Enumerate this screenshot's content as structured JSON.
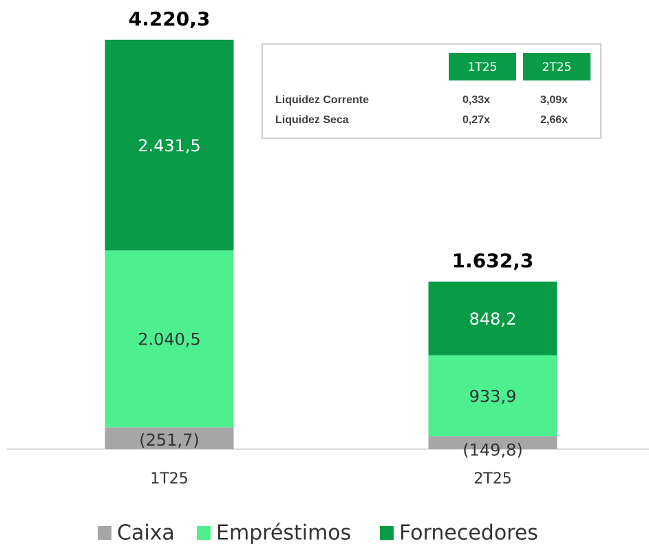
{
  "chart_data": {
    "type": "bar",
    "stacked": true,
    "categories": [
      "1T25",
      "2T25"
    ],
    "series": [
      {
        "name": "Caixa",
        "color": "#a6a6a6",
        "values": [
          -251.7,
          -149.8
        ],
        "value_labels": [
          "(251,7)",
          "(149,8)"
        ]
      },
      {
        "name": "Empréstimos",
        "color": "#4def8e",
        "values": [
          2040.5,
          933.9
        ],
        "value_labels": [
          "2.040,5",
          "933,9"
        ]
      },
      {
        "name": "Fornecedores",
        "color": "#0a9b47",
        "values": [
          2431.5,
          848.2
        ],
        "value_labels": [
          "2.431,5",
          "848,2"
        ]
      }
    ],
    "totals": [
      4220.3,
      1632.3
    ],
    "total_labels": [
      "4.220,3",
      "1.632,3"
    ],
    "legend": "bottom"
  },
  "table": {
    "header": [
      "1T25",
      "2T25"
    ],
    "rows": [
      [
        "Liquidez Corrente",
        "0,33x",
        "3,09x"
      ],
      [
        "Liquidez Seca",
        "0,27x",
        "2,66x"
      ]
    ]
  }
}
